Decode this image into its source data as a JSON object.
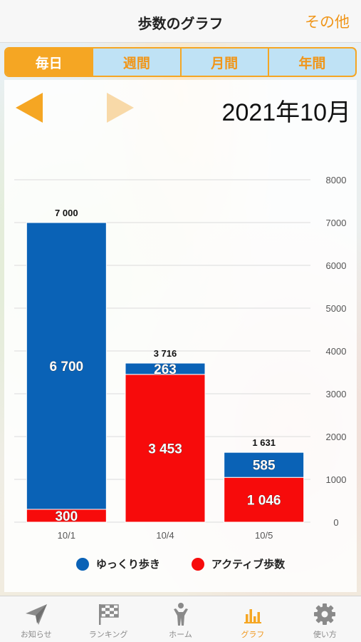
{
  "header": {
    "title": "歩数のグラフ",
    "more_label": "その他"
  },
  "segments": [
    {
      "label": "毎日",
      "active": true
    },
    {
      "label": "週間",
      "active": false
    },
    {
      "label": "月間",
      "active": false
    },
    {
      "label": "年間",
      "active": false
    }
  ],
  "period_label": "2021年10月",
  "colors": {
    "accent": "#f5a623",
    "slow": "#0a62b6",
    "active": "#f70b0b",
    "inactive_arrow": "#f8d9a8"
  },
  "chart_data": {
    "type": "bar",
    "stacked": true,
    "categories": [
      "10/1",
      "10/4",
      "10/5"
    ],
    "series": [
      {
        "name": "ゆっくり歩き",
        "values": [
          6700,
          263,
          585
        ],
        "labels": [
          "6 700",
          "263",
          "585"
        ]
      },
      {
        "name": "アクティブ歩数",
        "values": [
          300,
          3453,
          1046
        ],
        "labels": [
          "300",
          "3 453",
          "1 046"
        ]
      }
    ],
    "totals": [
      7000,
      3716,
      1631
    ],
    "total_labels": [
      "7 000",
      "3 716",
      "1 631"
    ],
    "ylim": [
      0,
      8000
    ],
    "yticks": [
      "0",
      "1000",
      "2000",
      "3000",
      "4000",
      "5000",
      "6000",
      "7000",
      "8000"
    ],
    "y_axis_side": "right",
    "grid": true,
    "legend_position": "bottom"
  },
  "tabbar": [
    {
      "label": "お知らせ",
      "icon": "paper-plane-icon",
      "active": false
    },
    {
      "label": "ランキング",
      "icon": "checkered-flag-icon",
      "active": false
    },
    {
      "label": "ホーム",
      "icon": "person-icon",
      "active": false
    },
    {
      "label": "グラフ",
      "icon": "bar-chart-icon",
      "active": true
    },
    {
      "label": "使い方",
      "icon": "gear-icon",
      "active": false
    }
  ]
}
